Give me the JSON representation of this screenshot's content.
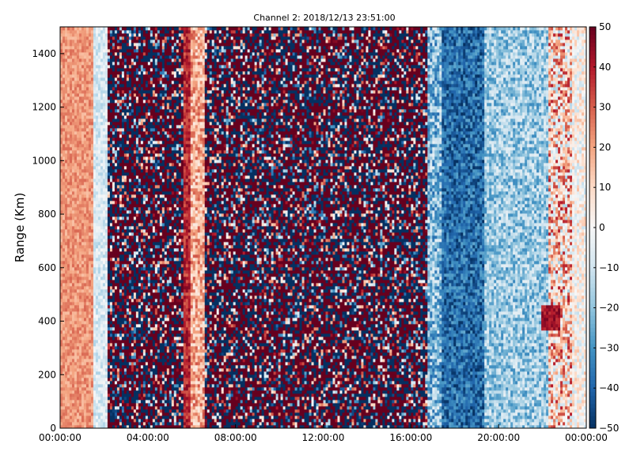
{
  "chart_data": {
    "type": "heatmap",
    "title": "Channel 2: 2018/12/13 23:51:00",
    "xlabel": "",
    "ylabel": "Range (Km)",
    "x_tick_labels": [
      "00:00:00",
      "04:00:00",
      "08:00:00",
      "12:00:00",
      "16:00:00",
      "20:00:00",
      "00:00:00"
    ],
    "x_range_hours": [
      0,
      24
    ],
    "x_tick_hours": [
      0,
      4,
      8,
      12,
      16,
      20,
      24
    ],
    "y_ticks": [
      0,
      200,
      400,
      600,
      800,
      1000,
      1200,
      1400
    ],
    "ylim": [
      0,
      1500
    ],
    "colorbar": {
      "colormap": "RdBu_r",
      "vmin": -50,
      "vmax": 50,
      "ticks": [
        50,
        40,
        30,
        20,
        10,
        0,
        -10,
        -20,
        -30,
        -40,
        -50
      ]
    },
    "grid": false,
    "column_bands_hours": [
      {
        "from": 0.0,
        "to": 1.5,
        "mean": 22,
        "noise": 7
      },
      {
        "from": 1.5,
        "to": 2.15,
        "mean": -8,
        "noise": 8
      },
      {
        "from": 2.15,
        "to": 5.6,
        "mean": 0,
        "noise": 60
      },
      {
        "from": 5.6,
        "to": 5.95,
        "mean": 38,
        "noise": 9
      },
      {
        "from": 5.95,
        "to": 6.6,
        "mean": 18,
        "noise": 14
      },
      {
        "from": 6.6,
        "to": 16.8,
        "mean": 0,
        "noise": 60
      },
      {
        "from": 16.8,
        "to": 17.4,
        "mean": -22,
        "noise": 18
      },
      {
        "from": 17.4,
        "to": 19.4,
        "mean": -38,
        "noise": 12
      },
      {
        "from": 19.4,
        "to": 22.3,
        "mean": -18,
        "noise": 14
      },
      {
        "from": 22.3,
        "to": 23.3,
        "mean": 12,
        "noise": 28
      },
      {
        "from": 23.3,
        "to": 24.0,
        "mean": 2,
        "noise": 14
      }
    ],
    "highlight_patch": {
      "from_hour": 22.0,
      "to_hour": 22.8,
      "from_km": 370,
      "to_km": 460,
      "value": 48
    }
  }
}
